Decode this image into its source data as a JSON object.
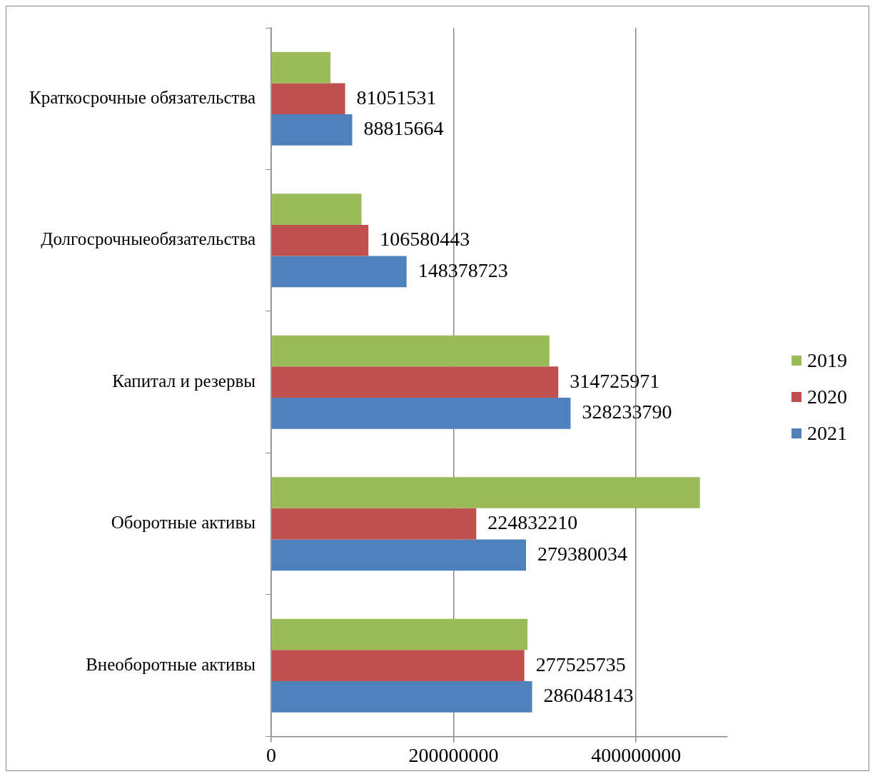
{
  "chart_data": {
    "type": "bar",
    "orientation": "horizontal",
    "categories": [
      "Краткосрочные обязательства",
      "Долгосрочныеобязательства",
      "Капитал и резервы",
      "Оборотные активы",
      "Внеоборотные активы"
    ],
    "series": [
      {
        "name": "2019",
        "color": "#9bbb59",
        "values": [
          65000000,
          99000000,
          305000000,
          470000000,
          281000000
        ]
      },
      {
        "name": "2020",
        "color": "#c0504d",
        "values": [
          81051531,
          106580443,
          314725971,
          224832210,
          277525735
        ],
        "value_labels": [
          "81051531",
          "106580443",
          "314725971",
          "224832210",
          "277525735"
        ]
      },
      {
        "name": "2021",
        "color": "#4f81bd",
        "values": [
          88815664,
          148378723,
          328233790,
          279380034,
          286048143
        ],
        "value_labels": [
          "88815664",
          "148378723",
          "328233790",
          "279380034",
          "286048143"
        ]
      }
    ],
    "xlim": [
      0,
      500000000
    ],
    "xticks": [
      0,
      200000000,
      400000000
    ],
    "grid": "x",
    "legend": "right"
  }
}
